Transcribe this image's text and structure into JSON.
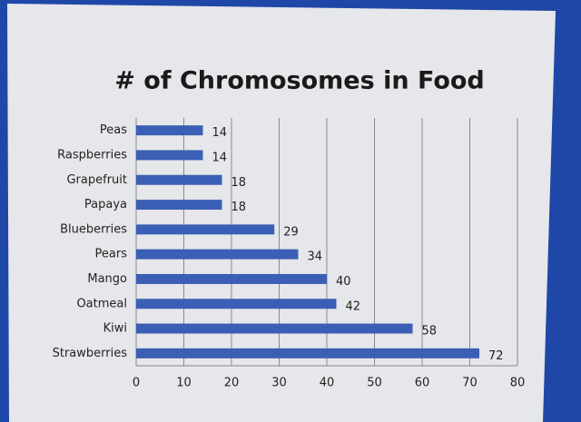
{
  "chart_data": {
    "type": "bar",
    "orientation": "horizontal",
    "title": "# of Chromosomes in Food",
    "categories": [
      "Peas",
      "Raspberries",
      "Grapefruit",
      "Papaya",
      "Blueberries",
      "Pears",
      "Mango",
      "Oatmeal",
      "Kiwi",
      "Strawberries"
    ],
    "values": [
      14,
      14,
      18,
      18,
      29,
      34,
      40,
      42,
      58,
      72
    ],
    "color": "#3b5fb4",
    "xlim": [
      0,
      80
    ],
    "xticks": [
      0,
      10,
      20,
      30,
      40,
      50,
      60,
      70,
      80
    ],
    "grid": true
  }
}
